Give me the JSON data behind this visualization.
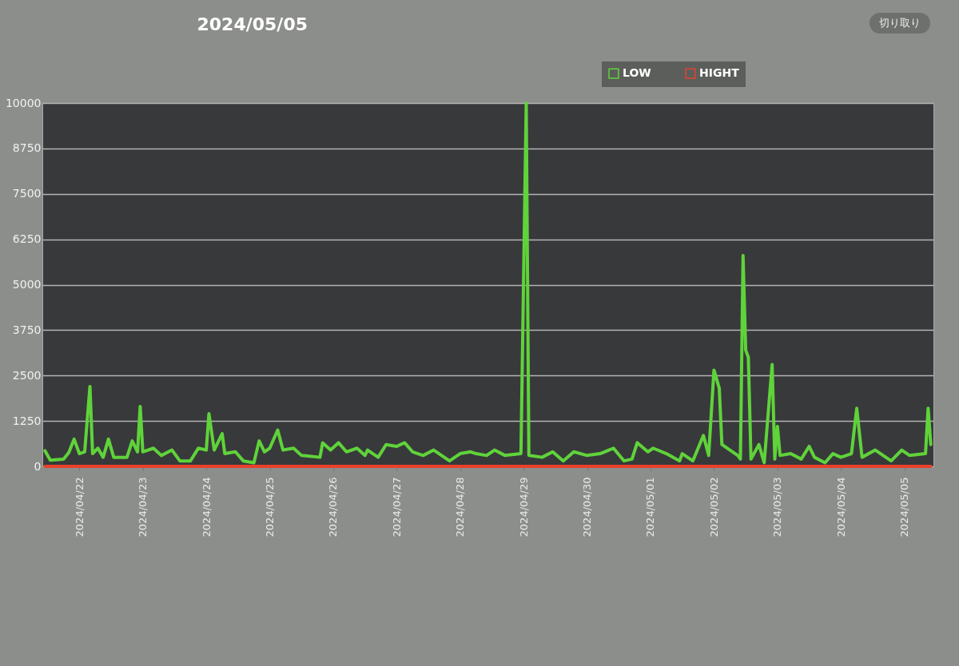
{
  "chart_data": {
    "type": "line",
    "title": "2024/05/05",
    "annotations": [
      "切り取り"
    ],
    "xlim": [
      "2024-04-21T10:00",
      "2024-05-05T11:00"
    ],
    "xticks": [
      {
        "value": "2024-04-22",
        "label": "2024/04/22"
      },
      {
        "value": "2024-04-23",
        "label": "2024/04/23"
      },
      {
        "value": "2024-04-24",
        "label": "2024/04/24"
      },
      {
        "value": "2024-04-25",
        "label": "2024/04/25"
      },
      {
        "value": "2024-04-26",
        "label": "2024/04/26"
      },
      {
        "value": "2024-04-27",
        "label": "2024/04/27"
      },
      {
        "value": "2024-04-28",
        "label": "2024/04/28"
      },
      {
        "value": "2024-04-29",
        "label": "2024/04/29"
      },
      {
        "value": "2024-04-30",
        "label": "2024/04/30"
      },
      {
        "value": "2024-05-01",
        "label": "2024/05/01"
      },
      {
        "value": "2024-05-02",
        "label": "2024/05/02"
      },
      {
        "value": "2024-05-03",
        "label": "2024/05/03"
      },
      {
        "value": "2024-05-04",
        "label": "2024/05/04"
      },
      {
        "value": "2024-05-05",
        "label": "2024/05/05"
      }
    ],
    "ylim": [
      0,
      10000
    ],
    "yticks": [
      0,
      1250,
      2500,
      3750,
      5000,
      6250,
      7500,
      8750,
      10000
    ],
    "grid": "y",
    "legend": "top",
    "marker": "none",
    "line_style": "solid",
    "series": [
      {
        "name": "LOW",
        "color": "#5fd33a",
        "x": [
          "2024-04-21T11:00",
          "2024-04-21T13:00",
          "2024-04-21T18:00",
          "2024-04-21T20:00",
          "2024-04-21T22:00",
          "2024-04-22T00:00",
          "2024-04-22T02:00",
          "2024-04-22T04:00",
          "2024-04-22T05:00",
          "2024-04-22T07:00",
          "2024-04-22T09:00",
          "2024-04-22T11:00",
          "2024-04-22T13:00",
          "2024-04-22T18:00",
          "2024-04-22T20:00",
          "2024-04-22T22:00",
          "2024-04-22T23:00",
          "2024-04-23T00:00",
          "2024-04-23T04:00",
          "2024-04-23T07:00",
          "2024-04-23T11:00",
          "2024-04-23T14:00",
          "2024-04-23T18:00",
          "2024-04-23T21:00",
          "2024-04-24T00:00",
          "2024-04-24T01:00",
          "2024-04-24T03:00",
          "2024-04-24T06:00",
          "2024-04-24T07:00",
          "2024-04-24T11:00",
          "2024-04-24T14:00",
          "2024-04-24T18:00",
          "2024-04-24T20:00",
          "2024-04-24T22:00",
          "2024-04-25T00:00",
          "2024-04-25T03:00",
          "2024-04-25T05:00",
          "2024-04-25T09:00",
          "2024-04-25T12:00",
          "2024-04-25T19:00",
          "2024-04-25T20:00",
          "2024-04-25T23:00",
          "2024-04-26T02:00",
          "2024-04-26T05:00",
          "2024-04-26T09:00",
          "2024-04-26T12:00",
          "2024-04-26T13:00",
          "2024-04-26T17:00",
          "2024-04-26T20:00",
          "2024-04-27T00:00",
          "2024-04-27T03:00",
          "2024-04-27T06:00",
          "2024-04-27T10:00",
          "2024-04-27T14:00",
          "2024-04-27T20:00",
          "2024-04-28T00:00",
          "2024-04-28T04:00",
          "2024-04-28T06:00",
          "2024-04-28T10:00",
          "2024-04-28T13:00",
          "2024-04-28T17:00",
          "2024-04-28T23:00",
          "2024-04-29T01:00",
          "2024-04-29T02:00",
          "2024-04-29T07:00",
          "2024-04-29T11:00",
          "2024-04-29T15:00",
          "2024-04-29T19:00",
          "2024-04-30T00:00",
          "2024-04-30T05:00",
          "2024-04-30T10:00",
          "2024-04-30T14:00",
          "2024-04-30T17:00",
          "2024-04-30T19:00",
          "2024-04-30T23:00",
          "2024-05-01T01:00",
          "2024-05-01T06:00",
          "2024-05-01T11:00",
          "2024-05-01T12:00",
          "2024-05-01T16:00",
          "2024-05-01T20:00",
          "2024-05-01T22:00",
          "2024-05-02T00:00",
          "2024-05-02T02:00",
          "2024-05-02T03:00",
          "2024-05-02T09:00",
          "2024-05-02T10:00",
          "2024-05-02T11:00",
          "2024-05-02T12:00",
          "2024-05-02T13:00",
          "2024-05-02T14:00",
          "2024-05-02T17:00",
          "2024-05-02T19:00",
          "2024-05-02T22:00",
          "2024-05-02T23:00",
          "2024-05-03T00:00",
          "2024-05-03T01:00",
          "2024-05-03T05:00",
          "2024-05-03T09:00",
          "2024-05-03T12:00",
          "2024-05-03T14:00",
          "2024-05-03T18:00",
          "2024-05-03T21:00",
          "2024-05-04T00:00",
          "2024-05-04T04:00",
          "2024-05-04T06:00",
          "2024-05-04T08:00",
          "2024-05-04T13:00",
          "2024-05-04T19:00",
          "2024-05-04T23:00",
          "2024-05-05T02:00",
          "2024-05-05T08:00",
          "2024-05-05T09:00",
          "2024-05-05T10:00"
        ],
        "values": [
          430,
          170,
          200,
          380,
          750,
          350,
          400,
          2200,
          350,
          500,
          250,
          750,
          250,
          250,
          700,
          400,
          1650,
          400,
          500,
          300,
          450,
          150,
          150,
          500,
          450,
          1450,
          450,
          900,
          350,
          400,
          150,
          100,
          700,
          400,
          500,
          1000,
          450,
          500,
          300,
          250,
          650,
          450,
          650,
          400,
          500,
          300,
          450,
          250,
          600,
          550,
          650,
          400,
          300,
          450,
          150,
          350,
          400,
          350,
          300,
          450,
          300,
          350,
          10000,
          300,
          250,
          400,
          150,
          400,
          300,
          350,
          500,
          150,
          200,
          650,
          400,
          500,
          350,
          150,
          350,
          150,
          850,
          300,
          2650,
          2150,
          600,
          300,
          200,
          5800,
          3200,
          3000,
          200,
          600,
          100,
          2800,
          200,
          1100,
          300,
          350,
          200,
          550,
          250,
          100,
          350,
          250,
          350,
          1600,
          250,
          450,
          150,
          450,
          300,
          350,
          1600,
          600
        ]
      },
      {
        "name": "HIGHT",
        "color": "#e8412c",
        "x": [
          "2024-04-21T11:00",
          "2024-05-05T10:00"
        ],
        "values": [
          0,
          0
        ]
      }
    ]
  }
}
